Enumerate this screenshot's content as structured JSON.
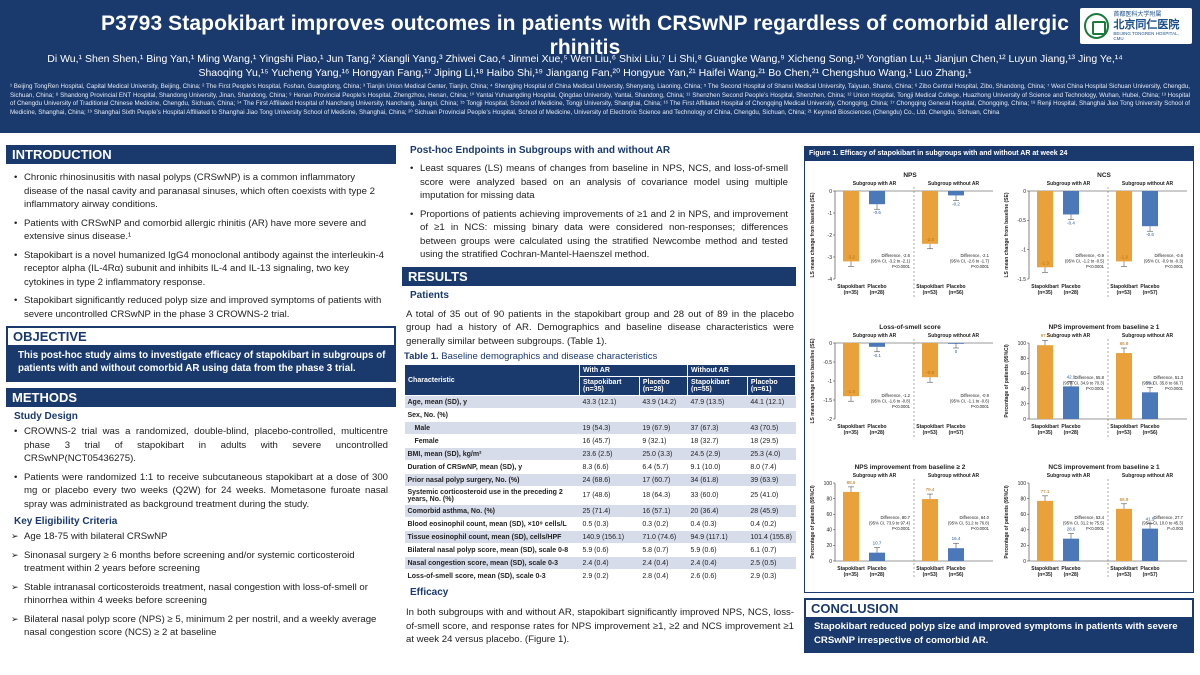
{
  "header": {
    "title": "P3793 Stapokibart improves outcomes in patients with CRSwNP regardless of comorbid allergic rhinitis",
    "authors": "Di Wu,¹ Shen Shen,¹ Bing Yan,¹ Ming Wang,¹ Yingshi Piao,¹ Jun Tang,² Xiangli Yang,³ Zhiwei Cao,⁴ Jinmei Xue,⁵ Wen Liu,⁶ Shixi Liu,⁷ Li Shi,⁸ Guangke Wang,⁹ Xicheng Song,¹⁰ Yongtian Lu,¹¹ Jianjun Chen,¹² Luyun Jiang,¹³ Jing Ye,¹⁴ Shaoqing Yu,¹⁵ Yucheng Yang,¹⁶ Hongyan Fang,¹⁷ Jiping Li,¹⁸ Haibo Shi,¹⁹ Jiangang Fan,²⁰ Hongyue Yan,²¹ Haifei Wang,²¹ Bo Chen,²¹ Chengshuo Wang,¹ Luo Zhang,¹",
    "affiliations": "¹ Beijing TongRen Hospital, Capital Medical University, Beijing, China; ² The First People’s Hospital, Foshan, Guangdong, China; ³ Tianjin Union Medical Center, Tianjin, China; ⁴ Shengjing Hospital of China Medical University, Shenyang, Liaoning, China; ⁵ The Second Hospital of Shanxi Medical University, Taiyuan, Shanxi, China; ⁶ Zibo Central Hospital, Zibo, Shandong, China; ⁷ West China Hospital Sichuan University, Chengdu, Sichuan, China; ⁸ Shandong Provincial ENT Hospital, Shandong University, Jinan, Shandong, China; ⁹ Henan Provincial People’s Hospital, Zhengzhou, Henan, China; ¹⁰ Yantai Yuhuangding Hospital, Qingdao University, Yantai, Shandong, China; ¹¹ Shenzhen Second People’s Hospital, Shenzhen, China; ¹² Union Hospital, Tongji Medical College, Huazhong University of Science and Technology, Wuhan, Hubei, China; ¹³ Hospital of Chengdu University of Traditional Chinese Medicine, Chengdu, Sichuan, China; ¹⁴ The First Affiliated Hospital of Nanchang University, Nanchang, Jiangxi, China; ¹⁵ Tongji Hospital, School of Medicine, Tongji University, Shanghai, China; ¹⁶ The First Affiliated Hospital of Chongqing Medical University, Chongqing, China; ¹⁷ Chongqing General Hospital, Chongqing, China; ¹⁸ Renji Hospital, Shanghai Jiao Tong University School of Medicine, Shanghai, China; ¹⁹ Shanghai Sixth People’s Hospital Affiliated to Shanghai Jiao Tong University School of Medicine, Shanghai, China; ²⁰ Sichuan Provincial People’s Hospital, School of Medicine, University of Electronic Science and Technology of China, Chengdu, Sichuan, China; ²¹ Keymed Biosciences (Chengdu) Co., Ltd, Chengdu, Sichuan, China",
    "logo_cn_small": "首都医科大学附属",
    "logo_cn": "北京同仁医院",
    "logo_en": "BEIJING TONGREN HOSPITAL, CMU"
  },
  "intro": {
    "heading": "INTRODUCTION",
    "bullets": [
      "Chronic rhinosinusitis with nasal polyps (CRSwNP) is a common inflammatory disease of the nasal cavity and paranasal sinuses, which often coexists with type 2 inflammatory airway conditions.",
      "Patients with CRSwNP and comorbid allergic rhinitis (AR) have more severe and extensive sinus disease.¹",
      "Stapokibart is a novel humanized IgG4 monoclonal antibody against the interleukin-4 receptor alpha (IL-4Rα) subunit and inhibits IL-4 and IL-13 signaling, two key cytokines in type 2 inflammatory response.",
      "Stapokibart significantly reduced polyp size and improved symptoms of patients with severe uncontrolled CRSwNP in the phase 3 CROWNS-2 trial."
    ]
  },
  "objective": {
    "heading": "OBJECTIVE",
    "text": "This post-hoc study aims to investigate efficacy of stapokibart in subgroups of patients with and without comorbid AR using data from the phase 3 trial."
  },
  "methods": {
    "heading": "METHODS",
    "study_design_h": "Study Design",
    "study_design": [
      "CROWNS-2 trial was a randomized, double-blind, placebo-controlled, multicentre phase 3 trial of stapokibart in adults with severe uncontrolled CRSwNP(NCT05436275).",
      "Patients were randomized 1:1 to receive subcutaneous stapokibart at a dose of 300 mg or placebo every two weeks (Q2W) for 24 weeks. Mometasone furoate nasal spray was administrated as background treatment during the study."
    ],
    "eligibility_h": "Key Eligibility Criteria",
    "eligibility": [
      "Age 18-75 with bilateral CRSwNP",
      "Sinonasal surgery ≥ 6 months before screening and/or systemic corticosteroid treatment within 2 years before screening",
      "Stable intranasal corticosteroids treatment, nasal congestion with loss-of-smell or rhinorrhea within 4 weeks before screening",
      "Bilateral nasal polyp score (NPS) ≥ 5, minimum 2 per nostril, and a weekly average nasal congestion score (NCS) ≥ 2 at baseline"
    ]
  },
  "posthoc": {
    "heading": "Post-hoc Endpoints in Subgroups with and without AR",
    "bullets": [
      "Least squares (LS) means of changes from baseline in NPS, NCS, and loss-of-smell score were analyzed based on an analysis of covariance model using multiple imputation for missing data",
      "Proportions of patients achieving improvements of ≥1 and 2 in NPS, and improvement of ≥1 in NCS: missing binary data were considered non-responses; differences between groups were calculated using the stratified Newcombe method and tested using the stratified Cochran-Mantel-Haenszel method."
    ]
  },
  "results": {
    "heading": "RESULTS",
    "patients_h": "Patients",
    "patients_text": "A total of 35 out of 90 patients in the stapokibart group and 28 out of 89 in the placebo group had a history of AR. Demographics and baseline disease characteristics were generally similar between subgroups. (Table 1).",
    "table_caption_b": "Table 1.",
    "table_caption": " Baseline demographics and disease characteristics",
    "table": {
      "char_h": "Characteristic",
      "with_ar": "With AR",
      "without_ar": "Without AR",
      "cols": [
        "Stapokibart (n=35)",
        "Placebo (n=28)",
        "Stapokibart (n=55)",
        "Placebo (n=61)"
      ],
      "rows": [
        {
          "label": "Age, mean (SD), y",
          "v": [
            "43.3 (12.1)",
            "43.9 (14.2)",
            "47.9 (13.5)",
            "44.1 (12.1)"
          ],
          "sub": false
        },
        {
          "label": "Sex, No. (%)",
          "v": [
            "",
            "",
            "",
            ""
          ],
          "sub": false
        },
        {
          "label": "Male",
          "v": [
            "19 (54.3)",
            "19 (67.9)",
            "37 (67.3)",
            "43 (70.5)"
          ],
          "sub": true
        },
        {
          "label": "Female",
          "v": [
            "16 (45.7)",
            "9 (32.1)",
            "18 (32.7)",
            "18 (29.5)"
          ],
          "sub": true
        },
        {
          "label": "BMI, mean (SD), kg/m²",
          "v": [
            "23.6 (2.5)",
            "25.0 (3.3)",
            "24.5 (2.9)",
            "25.3 (4.0)"
          ],
          "sub": false
        },
        {
          "label": "Duration of CRSwNP, mean (SD), y",
          "v": [
            "8.3 (6.6)",
            "6.4 (5.7)",
            "9.1 (10.0)",
            "8.0 (7.4)"
          ],
          "sub": false
        },
        {
          "label": "Prior nasal polyp surgery, No. (%)",
          "v": [
            "24 (68.6)",
            "17 (60.7)",
            "34 (61.8)",
            "39 (63.9)"
          ],
          "sub": false
        },
        {
          "label": "Systemic corticosteroid use in the preceding 2 years, No. (%)",
          "v": [
            "17 (48.6)",
            "18 (64.3)",
            "33 (60.0)",
            "25 (41.0)"
          ],
          "sub": false
        },
        {
          "label": "Comorbid asthma, No. (%)",
          "v": [
            "25 (71.4)",
            "16 (57.1)",
            "20 (36.4)",
            "28 (45.9)"
          ],
          "sub": false
        },
        {
          "label": "Blood eosinophil count, mean (SD), ×10⁹ cells/L",
          "v": [
            "0.5 (0.3)",
            "0.3 (0.2)",
            "0.4 (0.3)",
            "0.4 (0.2)"
          ],
          "sub": false
        },
        {
          "label": "Tissue eosinophil count, mean (SD), cells/HPF",
          "v": [
            "140.9 (156.1)",
            "71.0 (74.6)",
            "94.9 (117.1)",
            "101.4 (155.8)"
          ],
          "sub": false
        },
        {
          "label": "Bilateral nasal polyp score, mean (SD), scale 0-8",
          "v": [
            "5.9 (0.6)",
            "5.8 (0.7)",
            "5.9 (0.6)",
            "6.1 (0.7)"
          ],
          "sub": false
        },
        {
          "label": "Nasal congestion score, mean (SD), scale 0-3",
          "v": [
            "2.4 (0.4)",
            "2.4 (0.4)",
            "2.4 (0.4)",
            "2.5 (0.5)"
          ],
          "sub": false
        },
        {
          "label": "Loss-of-smell score, mean (SD), scale 0-3",
          "v": [
            "2.9 (0.2)",
            "2.8 (0.4)",
            "2.6 (0.6)",
            "2.9 (0.3)"
          ],
          "sub": false
        }
      ]
    },
    "efficacy_h": "Efficacy",
    "efficacy_text": "In both subgroups with and without AR, stapokibart significantly improved NPS, NCS, loss-of-smell score, and response rates for NPS improvement ≥1, ≥2 and NCS improvement ≥1 at week 24 versus placebo. (Figure 1)."
  },
  "figure": {
    "title": "Figure 1. Efficacy of stapokibart in subgroups with and without AR at week 24",
    "colors": {
      "stapo": "#e9a23b",
      "placebo": "#4a78b8"
    }
  },
  "chart_data": [
    {
      "type": "bar",
      "title": "NPS",
      "ylabel": "LS mean change from baseline (SE)",
      "ylim": [
        -4,
        0
      ],
      "ticks": [
        0,
        -1,
        -2,
        -3,
        -4
      ],
      "subgroups": [
        {
          "name": "Subgroup with AR",
          "categories": [
            "Stapokibart (n=35)",
            "Placebo (n=28)"
          ],
          "values": [
            -3.2,
            -0.6
          ],
          "diff": [
            "Difference, -2.6",
            "(95% CI, -3.2 to -2.1)",
            "P<0.0001"
          ]
        },
        {
          "name": "Subgroup without AR",
          "categories": [
            "Stapokibart (n=53)",
            "Placebo (n=56)"
          ],
          "values": [
            -2.4,
            -0.2
          ],
          "diff": [
            "Difference, -2.1",
            "(95% CI, -2.6 to -1.7)",
            "P<0.0001"
          ]
        }
      ]
    },
    {
      "type": "bar",
      "title": "NCS",
      "ylabel": "LS mean change from baseline (SE)",
      "ylim": [
        -1.5,
        0
      ],
      "ticks": [
        0,
        -0.5,
        -1.0,
        -1.5
      ],
      "subgroups": [
        {
          "name": "Subgroup with AR",
          "categories": [
            "Stapokibart (n=35)",
            "Placebo (n=28)"
          ],
          "values": [
            -1.3,
            -0.4
          ],
          "diff": [
            "Difference, -0.9",
            "(95% CI, -1.2 to -0.5)",
            "P<0.0001"
          ]
        },
        {
          "name": "Subgroup without AR",
          "categories": [
            "Stapokibart (n=53)",
            "Placebo (n=57)"
          ],
          "values": [
            -1.2,
            -0.6
          ],
          "diff": [
            "Difference, -0.6",
            "(95% CI, -0.9 to -0.3)",
            "P<0.0001"
          ]
        }
      ]
    },
    {
      "type": "bar",
      "title": "Loss-of-smell score",
      "ylabel": "LS mean change from baseline (SE)",
      "ylim": [
        -2.0,
        0
      ],
      "ticks": [
        0,
        -0.5,
        -1.0,
        -1.5,
        -2.0
      ],
      "subgroups": [
        {
          "name": "Subgroup with AR",
          "categories": [
            "Stapokibart (n=35)",
            "Placebo (n=28)"
          ],
          "values": [
            -1.4,
            -0.1
          ],
          "diff": [
            "Difference, -1.2",
            "(95% CI, -1.6 to -0.8)",
            "P<0.0001"
          ]
        },
        {
          "name": "Subgroup without AR",
          "categories": [
            "Stapokibart (n=53)",
            "Placebo (n=57)"
          ],
          "values": [
            -0.9,
            -0.0
          ],
          "diff": [
            "Difference, -0.9",
            "(95% CI, -1.1 to -0.6)",
            "P<0.0001"
          ]
        }
      ]
    },
    {
      "type": "bar",
      "title": "NPS improvement from baseline ≥ 1",
      "ylabel": "Percentage of patients (95%CI)",
      "ylim": [
        0,
        100
      ],
      "ticks": [
        0,
        20,
        40,
        60,
        80,
        100
      ],
      "subgroups": [
        {
          "name": "Subgroup with AR",
          "categories": [
            "Stapokibart (n=35)",
            "Placebo (n=28)"
          ],
          "values": [
            97.1,
            42.9
          ],
          "diff": [
            "Difference, 55.8",
            "(95% CI, 34.9 to 70.3)",
            "P<0.0001"
          ]
        },
        {
          "name": "Subgroup without AR",
          "categories": [
            "Stapokibart (n=53)",
            "Placebo (n=56)"
          ],
          "values": [
            86.8,
            35.1
          ],
          "diff": [
            "Difference, 51.3",
            "(95% CI, 35.8 to 66.7)",
            "P<0.0001"
          ]
        }
      ]
    },
    {
      "type": "bar",
      "title": "NPS improvement from baseline ≥ 2",
      "ylabel": "Percentage of patients (95%CI)",
      "ylim": [
        0,
        100
      ],
      "ticks": [
        0,
        20,
        40,
        60,
        80,
        100
      ],
      "subgroups": [
        {
          "name": "Subgroup with AR",
          "categories": [
            "Stapokibart (n=35)",
            "Placebo (n=28)"
          ],
          "values": [
            88.6,
            10.7
          ],
          "diff": [
            "Difference, 80.7",
            "(95% CI, 73.9 to 97.4)",
            "P<0.0001"
          ]
        },
        {
          "name": "Subgroup without AR",
          "categories": [
            "Stapokibart (n=53)",
            "Placebo (n=56)"
          ],
          "values": [
            79.4,
            16.4
          ],
          "diff": [
            "Difference, 64.0",
            "(95% CI, 51.2 to 76.8)",
            "P<0.0001"
          ]
        }
      ]
    },
    {
      "type": "bar",
      "title": "NCS improvement from baseline ≥ 1",
      "ylabel": "Percentage of patients (95%CI)",
      "ylim": [
        0,
        100
      ],
      "ticks": [
        0,
        20,
        40,
        60,
        80,
        100
      ],
      "subgroups": [
        {
          "name": "Subgroup with AR",
          "categories": [
            "Stapokibart (n=35)",
            "Placebo (n=28)"
          ],
          "values": [
            77.1,
            28.6
          ],
          "diff": [
            "Difference, 53.4",
            "(95% CI, 31.2 to 75.5)",
            "P<0.0001"
          ]
        },
        {
          "name": "Subgroup without AR",
          "categories": [
            "Stapokibart (n=53)",
            "Placebo (n=57)"
          ],
          "values": [
            66.9,
            41.5
          ],
          "diff": [
            "Difference, 27.7",
            "(95% CI, 10.0 to 45.3)",
            "P=0.003"
          ]
        }
      ]
    }
  ],
  "conclusion": {
    "heading": "CONCLUSION",
    "text": "Stapokibart reduced polyp size and improved symptoms in patients with severe CRSwNP irrespective of comorbid AR."
  }
}
